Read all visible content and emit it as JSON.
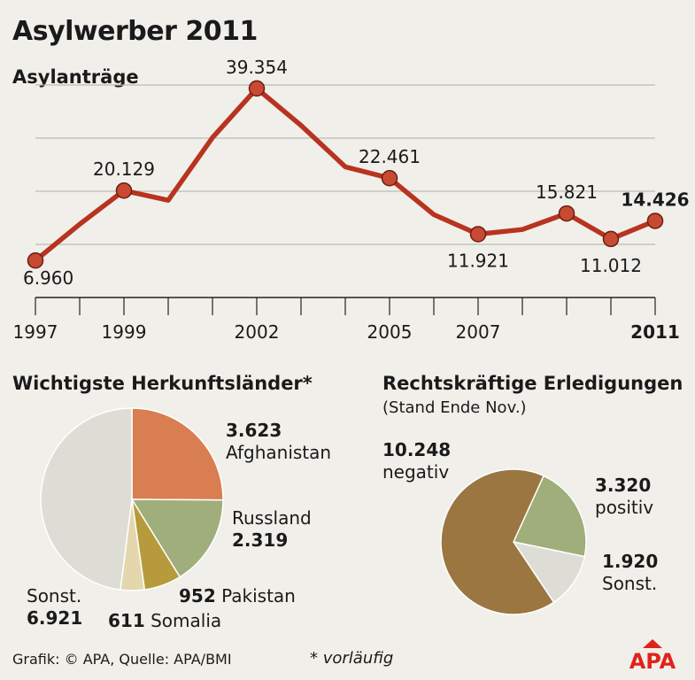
{
  "title": "Asylwerber 2011",
  "chart_data": [
    {
      "type": "line",
      "title": "Asylanträge",
      "x": [
        1997,
        1998,
        1999,
        2000,
        2001,
        2002,
        2003,
        2004,
        2005,
        2006,
        2007,
        2008,
        2009,
        2010,
        2011
      ],
      "x_tick_labels": [
        "1997",
        "1999",
        "2002",
        "2005",
        "2007",
        "2011"
      ],
      "x_tick_positions": [
        1997,
        1999,
        2002,
        2005,
        2007,
        2011
      ],
      "values": [
        6960,
        13800,
        20129,
        18300,
        30100,
        39354,
        32400,
        24600,
        22461,
        15600,
        11921,
        12800,
        15821,
        11012,
        14426
      ],
      "point_labels": [
        {
          "x": 1997,
          "label": "6.960",
          "placement": "below-right"
        },
        {
          "x": 1999,
          "label": "20.129",
          "placement": "above"
        },
        {
          "x": 2002,
          "label": "39.354",
          "placement": "above"
        },
        {
          "x": 2005,
          "label": "22.461",
          "placement": "above"
        },
        {
          "x": 2007,
          "label": "11.921",
          "placement": "below"
        },
        {
          "x": 2009,
          "label": "15.821",
          "placement": "above"
        },
        {
          "x": 2010,
          "label": "11.012",
          "placement": "below"
        },
        {
          "x": 2011,
          "label": "14.426",
          "placement": "above",
          "bold": true
        }
      ],
      "marked_points": [
        1997,
        1999,
        2002,
        2005,
        2007,
        2009,
        2010,
        2011
      ],
      "xlim": [
        1997,
        2011
      ],
      "ylim": [
        0,
        45000
      ],
      "gridlines": [
        10000,
        20000,
        30000,
        40000
      ],
      "grid": true,
      "line_color": "#b83320",
      "marker_color": "#c84a32"
    },
    {
      "type": "pie",
      "title": "Wichtigste Herkunftsländer*",
      "slices": [
        {
          "label": "Afghanistan",
          "value": 3623,
          "value_label": "3.623",
          "color": "#d97e50"
        },
        {
          "label": "Russland",
          "value": 2319,
          "value_label": "2.319",
          "color": "#9fae7a"
        },
        {
          "label": "Pakistan",
          "value": 952,
          "value_label": "952",
          "color": "#b79a3b"
        },
        {
          "label": "Somalia",
          "value": 611,
          "value_label": "611",
          "color": "#e4d7ad"
        },
        {
          "label": "Sonst.",
          "value": 6921,
          "value_label": "6.921",
          "color": "#deddd5"
        }
      ]
    },
    {
      "type": "pie",
      "title": "Rechtskräftige Erledigungen",
      "subtitle": "(Stand Ende Nov.)",
      "slices": [
        {
          "label": "positiv",
          "value": 3320,
          "value_label": "3.320",
          "color": "#9fae7a"
        },
        {
          "label": "Sonst.",
          "value": 1920,
          "value_label": "1.920",
          "color": "#deddd5"
        },
        {
          "label": "negativ",
          "value": 10248,
          "value_label": "10.248",
          "color": "#9c7640"
        }
      ]
    }
  ],
  "footer": {
    "source": "Grafik: © APA, Quelle: APA/BMI",
    "note": "* vorläufig"
  },
  "logo": {
    "text": "APA",
    "color": "#e0231a"
  }
}
